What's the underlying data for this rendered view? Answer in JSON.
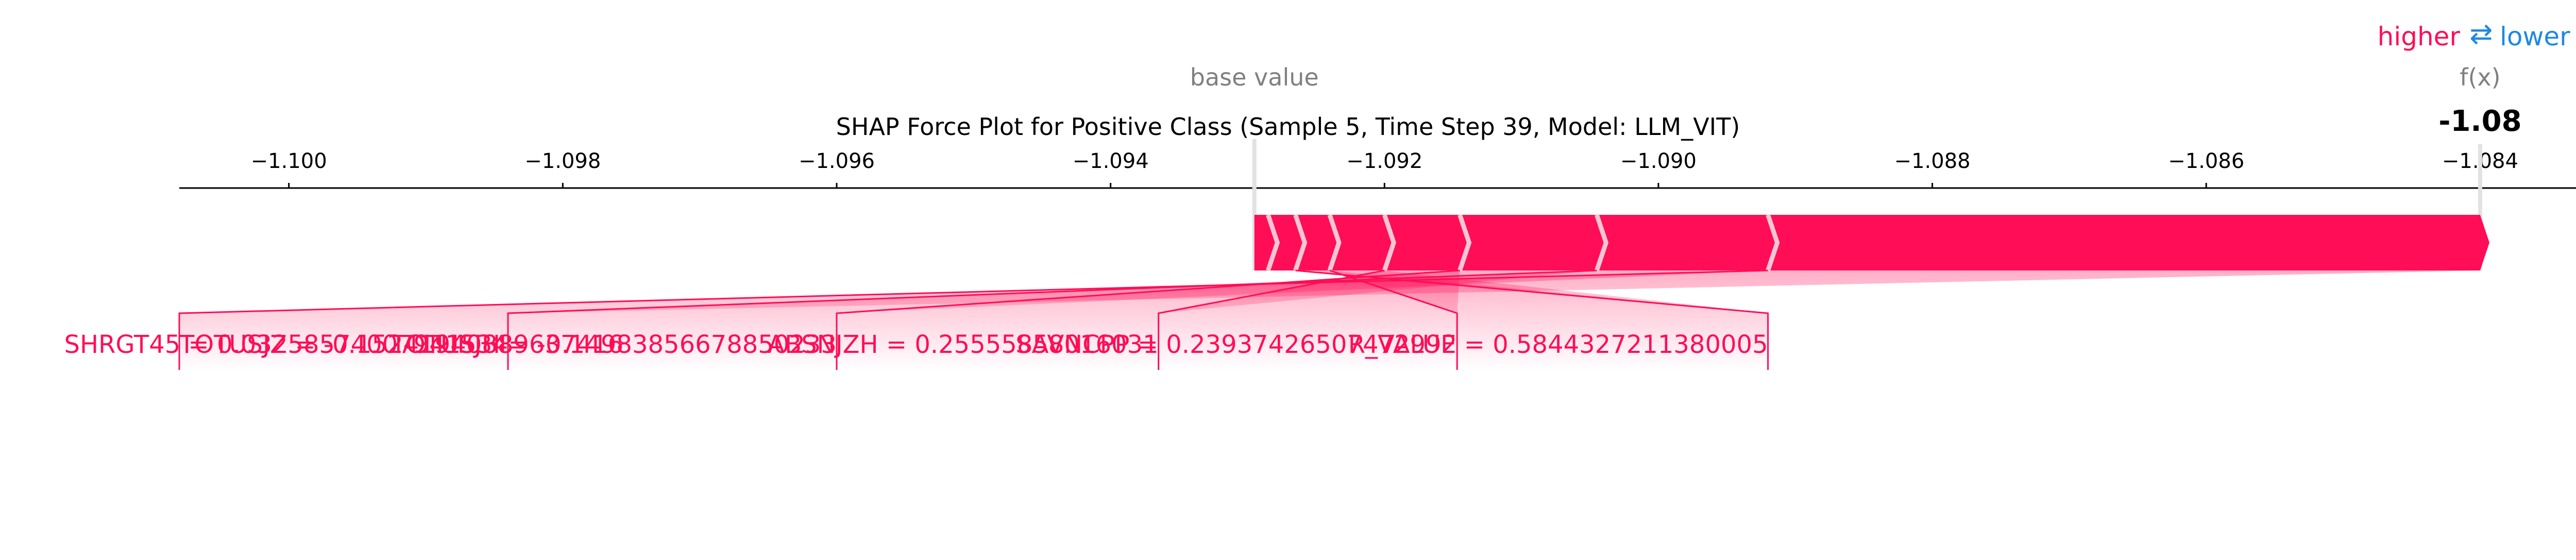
{
  "chart_data": {
    "type": "force",
    "title": "SHAP Force Plot for Positive Class (Sample 5, Time Step 39, Model: LLM_VIT)",
    "legend": {
      "higher_label": "higher",
      "arrow_glyph": "⇄",
      "lower_label": "lower"
    },
    "base_value_label": "base value",
    "base_value": -1.09295,
    "fx_label": "f(x)",
    "fx_value": -1.084,
    "fx_display": "-1.08",
    "xlim": [
      -1.1008,
      -1.0833
    ],
    "ticks": [
      {
        "value": -1.1,
        "label": "−1.100"
      },
      {
        "value": -1.098,
        "label": "−1.098"
      },
      {
        "value": -1.096,
        "label": "−1.096"
      },
      {
        "value": -1.094,
        "label": "−1.094"
      },
      {
        "value": -1.092,
        "label": "−1.092"
      },
      {
        "value": -1.09,
        "label": "−1.090"
      },
      {
        "value": -1.088,
        "label": "−1.088"
      },
      {
        "value": -1.086,
        "label": "−1.086"
      },
      {
        "value": -1.084,
        "label": "−1.084"
      }
    ],
    "segments": [
      {
        "start": -1.09295,
        "end": -1.09285
      },
      {
        "start": -1.09285,
        "end": -1.09265
      },
      {
        "start": -1.09265,
        "end": -1.0924
      },
      {
        "start": -1.0924,
        "end": -1.092
      },
      {
        "start": -1.092,
        "end": -1.09145
      },
      {
        "start": -1.09145,
        "end": -1.09045
      },
      {
        "start": -1.09045,
        "end": -1.0892
      },
      {
        "start": -1.0892,
        "end": -1.084
      }
    ],
    "labels": [
      {
        "text": "TOTUSJZ = -0.15241940889637416",
        "value": -1.1008
      },
      {
        "text": "SHRGT45 = 0.03258574007941534",
        "value": -1.0984
      },
      {
        "text": "TOTUSJH = -0.14983856678850233",
        "value": -1.096
      },
      {
        "text": "ABSNJZH = 0.25555858016031",
        "value": -1.09365
      },
      {
        "text": "SAVNCPP = 0.23937426507472992",
        "value": -1.09147
      },
      {
        "text": "R_VALUE = 0.5844327211380005",
        "value": -1.0892
      }
    ],
    "colors": {
      "positive": "#ff0d57",
      "negative": "#1e88e5",
      "base_text": "#808080",
      "axis": "#000000"
    }
  }
}
